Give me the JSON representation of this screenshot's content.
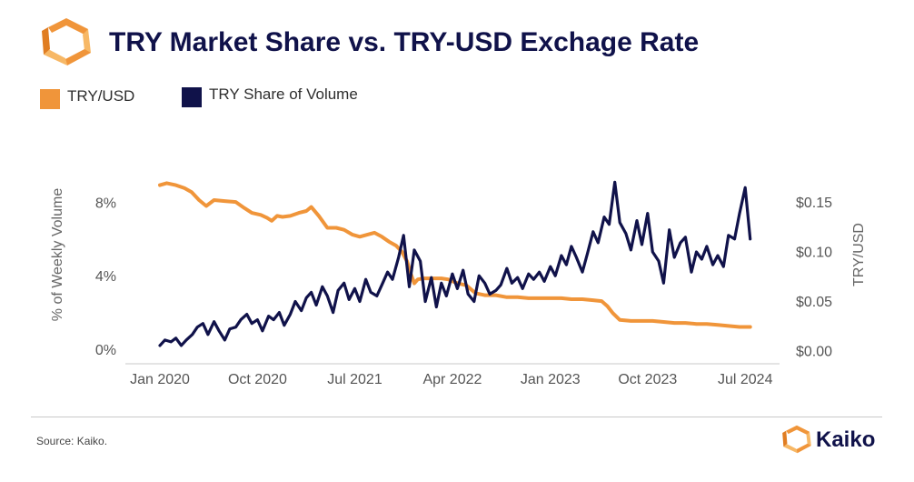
{
  "header": {
    "title": "TRY Market Share vs. TRY-USD Exchage Rate"
  },
  "legend": [
    {
      "label": "TRY/USD",
      "color": "#f0953a"
    },
    {
      "label": "TRY Share of Volume",
      "color": "#10124a"
    }
  ],
  "footer": {
    "source": "Source: Kaiko.",
    "brand": "Kaiko"
  },
  "colors": {
    "title": "#10124a",
    "accent": "#f0953a",
    "navy": "#10124a"
  },
  "chart_data": {
    "type": "line",
    "title": "TRY Market Share vs. TRY-USD Exchage Rate",
    "x_ticks": [
      "Jan 2020",
      "Oct 2020",
      "Jul 2021",
      "Apr 2022",
      "Jan 2023",
      "Oct 2023",
      "Jul 2024"
    ],
    "y_left": {
      "label": "% of Weekly Volume",
      "ticks": [
        "0%",
        "4%",
        "8%"
      ],
      "tick_values": [
        0,
        4,
        8
      ],
      "range": [
        -0.3,
        10.5
      ]
    },
    "y_right": {
      "label": "TRY/USD",
      "ticks": [
        "$0.00",
        "$0.05",
        "$0.10",
        "$0.15"
      ],
      "tick_values": [
        0,
        0.05,
        0.1,
        0.15
      ],
      "range": [
        -0.004,
        0.196
      ]
    },
    "grid": false,
    "x_range": [
      "2020-01-01",
      "2024-07-31"
    ],
    "series": [
      {
        "name": "TRY/USD",
        "axis": "right",
        "color": "#f0953a",
        "x": [
          "2020-01-01",
          "2020-01-20",
          "2020-02-15",
          "2020-03-10",
          "2020-03-30",
          "2020-04-20",
          "2020-05-10",
          "2020-06-01",
          "2020-07-01",
          "2020-08-01",
          "2020-08-25",
          "2020-09-15",
          "2020-10-10",
          "2020-10-28",
          "2020-11-10",
          "2020-11-25",
          "2020-12-10",
          "2021-01-01",
          "2021-01-25",
          "2021-02-15",
          "2021-03-01",
          "2021-03-22",
          "2021-04-15",
          "2021-05-10",
          "2021-06-01",
          "2021-06-25",
          "2021-07-15",
          "2021-08-05",
          "2021-08-25",
          "2021-09-15",
          "2021-10-05",
          "2021-10-25",
          "2021-11-10",
          "2021-11-25",
          "2021-12-05",
          "2021-12-15",
          "2021-12-25",
          "2022-01-10",
          "2022-02-01",
          "2022-03-01",
          "2022-03-20",
          "2022-04-15",
          "2022-05-10",
          "2022-06-05",
          "2022-07-01",
          "2022-08-01",
          "2022-09-01",
          "2022-10-01",
          "2022-11-01",
          "2022-12-01",
          "2023-01-01",
          "2023-02-01",
          "2023-03-01",
          "2023-04-01",
          "2023-05-01",
          "2023-05-25",
          "2023-06-10",
          "2023-06-25",
          "2023-07-15",
          "2023-08-15",
          "2023-09-15",
          "2023-10-15",
          "2023-11-15",
          "2023-12-15",
          "2024-01-15",
          "2024-02-15",
          "2024-03-15",
          "2024-04-15",
          "2024-05-15",
          "2024-06-15",
          "2024-07-15"
        ],
        "y": [
          0.167,
          0.169,
          0.167,
          0.164,
          0.16,
          0.152,
          0.146,
          0.152,
          0.151,
          0.15,
          0.144,
          0.139,
          0.137,
          0.134,
          0.131,
          0.136,
          0.135,
          0.136,
          0.139,
          0.141,
          0.145,
          0.136,
          0.124,
          0.124,
          0.122,
          0.117,
          0.115,
          0.117,
          0.119,
          0.115,
          0.11,
          0.106,
          0.1,
          0.09,
          0.078,
          0.068,
          0.072,
          0.073,
          0.073,
          0.073,
          0.072,
          0.068,
          0.066,
          0.058,
          0.056,
          0.056,
          0.054,
          0.054,
          0.053,
          0.053,
          0.053,
          0.053,
          0.052,
          0.052,
          0.051,
          0.05,
          0.045,
          0.038,
          0.031,
          0.03,
          0.03,
          0.03,
          0.029,
          0.028,
          0.028,
          0.027,
          0.027,
          0.026,
          0.025,
          0.024,
          0.024
        ]
      },
      {
        "name": "TRY Share of Volume",
        "axis": "left",
        "color": "#10124a",
        "x": [
          "2020-01-01",
          "2020-01-15",
          "2020-02-01",
          "2020-02-15",
          "2020-03-01",
          "2020-03-15",
          "2020-04-01",
          "2020-04-15",
          "2020-05-01",
          "2020-05-15",
          "2020-06-01",
          "2020-06-15",
          "2020-07-01",
          "2020-07-15",
          "2020-08-01",
          "2020-08-15",
          "2020-09-01",
          "2020-09-15",
          "2020-10-01",
          "2020-10-15",
          "2020-11-01",
          "2020-11-15",
          "2020-12-01",
          "2020-12-15",
          "2021-01-01",
          "2021-01-15",
          "2021-02-01",
          "2021-02-15",
          "2021-03-01",
          "2021-03-15",
          "2021-04-01",
          "2021-04-15",
          "2021-05-01",
          "2021-05-15",
          "2021-06-01",
          "2021-06-15",
          "2021-07-01",
          "2021-07-15",
          "2021-08-01",
          "2021-08-15",
          "2021-09-01",
          "2021-09-15",
          "2021-10-01",
          "2021-10-15",
          "2021-11-01",
          "2021-11-15",
          "2021-12-01",
          "2021-12-15",
          "2022-01-01",
          "2022-01-15",
          "2022-02-01",
          "2022-02-15",
          "2022-03-01",
          "2022-03-15",
          "2022-04-01",
          "2022-04-15",
          "2022-05-01",
          "2022-05-15",
          "2022-06-01",
          "2022-06-15",
          "2022-07-01",
          "2022-07-15",
          "2022-08-01",
          "2022-08-15",
          "2022-09-01",
          "2022-09-15",
          "2022-10-01",
          "2022-10-15",
          "2022-11-01",
          "2022-11-15",
          "2022-12-01",
          "2022-12-15",
          "2023-01-01",
          "2023-01-15",
          "2023-02-01",
          "2023-02-15",
          "2023-03-01",
          "2023-03-15",
          "2023-04-01",
          "2023-04-15",
          "2023-05-01",
          "2023-05-15",
          "2023-06-01",
          "2023-06-15",
          "2023-07-01",
          "2023-07-15",
          "2023-08-01",
          "2023-08-15",
          "2023-09-01",
          "2023-09-15",
          "2023-10-01",
          "2023-10-15",
          "2023-11-01",
          "2023-11-15",
          "2023-12-01",
          "2023-12-15",
          "2024-01-01",
          "2024-01-15",
          "2024-02-01",
          "2024-02-15",
          "2024-03-01",
          "2024-03-15",
          "2024-04-01",
          "2024-04-15",
          "2024-05-01",
          "2024-05-15",
          "2024-06-01",
          "2024-06-15",
          "2024-07-01",
          "2024-07-15"
        ],
        "y": [
          0.2,
          0.5,
          0.4,
          0.6,
          0.2,
          0.5,
          0.8,
          1.2,
          1.4,
          0.8,
          1.5,
          1.0,
          0.5,
          1.1,
          1.2,
          1.6,
          1.9,
          1.4,
          1.6,
          1.0,
          1.8,
          1.6,
          2.0,
          1.3,
          1.9,
          2.6,
          2.1,
          2.8,
          3.1,
          2.4,
          3.4,
          2.9,
          2.0,
          3.2,
          3.6,
          2.7,
          3.3,
          2.6,
          3.8,
          3.1,
          2.9,
          3.5,
          4.2,
          3.8,
          5.0,
          6.2,
          3.4,
          5.4,
          4.8,
          2.6,
          3.9,
          2.3,
          3.6,
          2.9,
          4.1,
          3.3,
          4.3,
          3.0,
          2.6,
          4.0,
          3.6,
          3.0,
          3.2,
          3.5,
          4.4,
          3.6,
          3.9,
          3.3,
          4.1,
          3.8,
          4.2,
          3.7,
          4.5,
          4.0,
          5.1,
          4.6,
          5.6,
          5.0,
          4.2,
          5.2,
          6.4,
          5.8,
          7.2,
          6.8,
          9.1,
          6.9,
          6.3,
          5.4,
          7.0,
          5.7,
          7.4,
          5.3,
          4.8,
          3.6,
          6.5,
          5.0,
          5.8,
          6.1,
          4.2,
          5.3,
          4.9,
          5.6,
          4.6,
          5.1,
          4.5,
          6.2,
          6.0,
          7.4,
          8.8,
          6.0
        ]
      }
    ]
  }
}
